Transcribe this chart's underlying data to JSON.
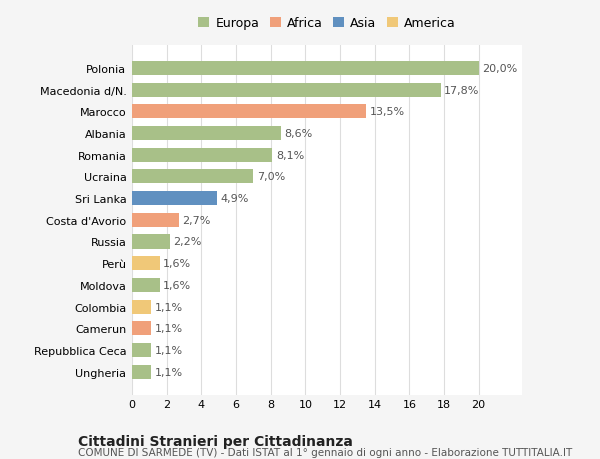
{
  "categories": [
    "Ungheria",
    "Repubblica Ceca",
    "Camerun",
    "Colombia",
    "Moldova",
    "Perù",
    "Russia",
    "Costa d'Avorio",
    "Sri Lanka",
    "Ucraina",
    "Romania",
    "Albania",
    "Marocco",
    "Macedonia d/N.",
    "Polonia"
  ],
  "values": [
    1.1,
    1.1,
    1.1,
    1.1,
    1.6,
    1.6,
    2.2,
    2.7,
    4.9,
    7.0,
    8.1,
    8.6,
    13.5,
    17.8,
    20.0
  ],
  "labels": [
    "1,1%",
    "1,1%",
    "1,1%",
    "1,1%",
    "1,6%",
    "1,6%",
    "2,2%",
    "2,7%",
    "4,9%",
    "7,0%",
    "8,1%",
    "8,6%",
    "13,5%",
    "17,8%",
    "20,0%"
  ],
  "bar_colors": [
    "#a8c088",
    "#a8c088",
    "#f0a07a",
    "#f0c878",
    "#a8c088",
    "#f0c878",
    "#a8c088",
    "#f0a07a",
    "#6090c0",
    "#a8c088",
    "#a8c088",
    "#a8c088",
    "#f0a07a",
    "#a8c088",
    "#a8c088"
  ],
  "legend_labels": [
    "Europa",
    "Africa",
    "Asia",
    "America"
  ],
  "legend_colors": [
    "#a8c088",
    "#f0a07a",
    "#6090c0",
    "#f0c878"
  ],
  "title": "Cittadini Stranieri per Cittadinanza",
  "subtitle": "COMUNE DI SARMEDE (TV) - Dati ISTAT al 1° gennaio di ogni anno - Elaborazione TUTTITALIA.IT",
  "xlim": [
    0,
    22.5
  ],
  "xticks": [
    0,
    2,
    4,
    6,
    8,
    10,
    12,
    14,
    16,
    18,
    20
  ],
  "background_color": "#f5f5f5",
  "plot_bg_color": "#ffffff",
  "grid_color": "#dddddd",
  "bar_height": 0.65,
  "label_fontsize": 8,
  "tick_fontsize": 8,
  "title_fontsize": 10,
  "subtitle_fontsize": 7.5
}
